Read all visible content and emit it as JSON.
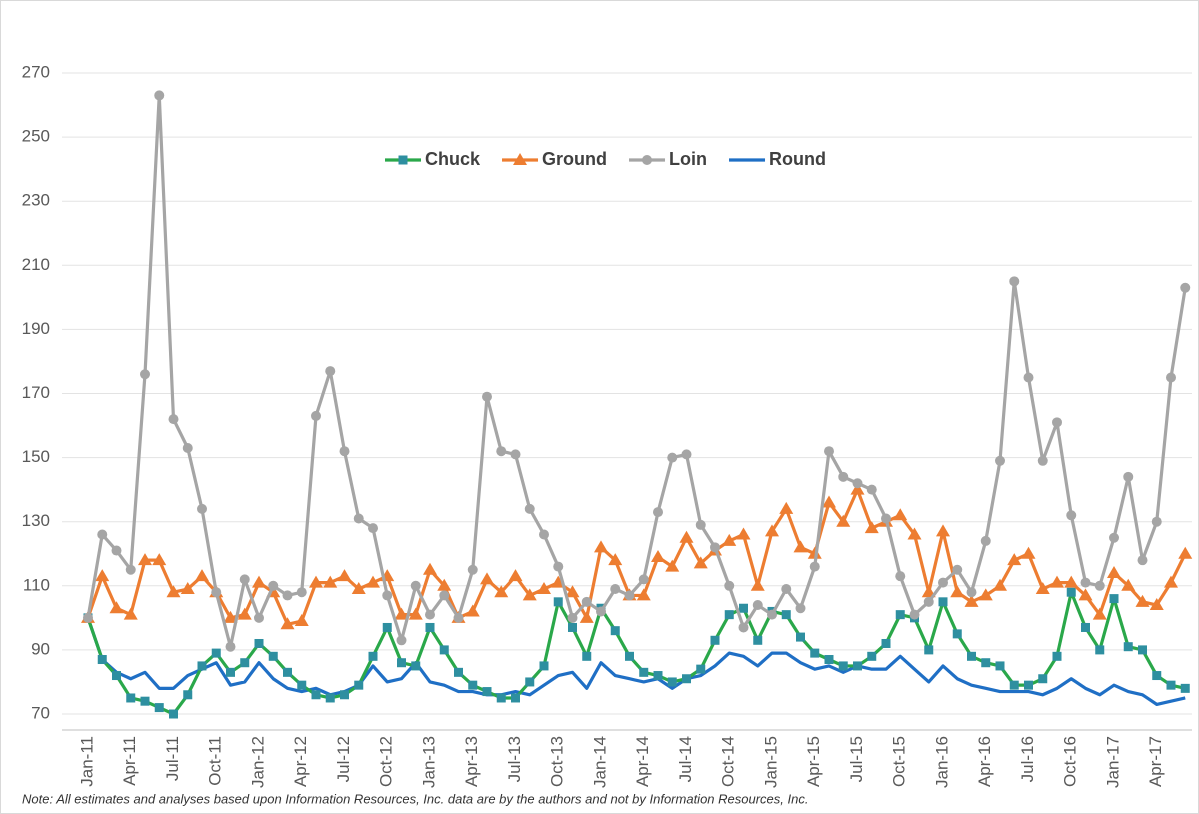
{
  "chart_data": {
    "type": "line",
    "note": "Note: All estimates and analyses based upon Information Resources, Inc. data are by the authors and not by Information Resources, Inc.",
    "categories": [
      "Jan-11",
      null,
      null,
      "Apr-11",
      null,
      null,
      "Jul-11",
      null,
      null,
      "Oct-11",
      null,
      null,
      "Jan-12",
      null,
      null,
      "Apr-12",
      null,
      null,
      "Jul-12",
      null,
      null,
      "Oct-12",
      null,
      null,
      "Jan-13",
      null,
      null,
      "Apr-13",
      null,
      null,
      "Jul-13",
      null,
      null,
      "Oct-13",
      null,
      null,
      "Jan-14",
      null,
      null,
      "Apr-14",
      null,
      null,
      "Jul-14",
      null,
      null,
      "Oct-14",
      null,
      null,
      "Jan-15",
      null,
      null,
      "Apr-15",
      null,
      null,
      "Jul-15",
      null,
      null,
      "Oct-15",
      null,
      null,
      "Jan-16",
      null,
      null,
      "Apr-16",
      null,
      null,
      "Jul-16",
      null,
      null,
      "Oct-16",
      null,
      null,
      "Jan-17",
      null,
      null,
      "Apr-17",
      null,
      null
    ],
    "series": [
      {
        "name": "Chuck",
        "color": "#2aa84a",
        "marker": "square",
        "marker_color": "#2e8fa0",
        "values": [
          100,
          87,
          82,
          75,
          74,
          72,
          70,
          76,
          85,
          89,
          83,
          86,
          92,
          88,
          83,
          79,
          76,
          75,
          76,
          79,
          88,
          97,
          86,
          85,
          97,
          90,
          83,
          79,
          77,
          75,
          75,
          80,
          85,
          105,
          97,
          88,
          103,
          96,
          88,
          83,
          82,
          80,
          81,
          84,
          93,
          101,
          103,
          93,
          102,
          101,
          94,
          89,
          87,
          85,
          85,
          88,
          92,
          101,
          100,
          90,
          105,
          95,
          88,
          86,
          85,
          79,
          79,
          81,
          88,
          108,
          97,
          90,
          106,
          91,
          90,
          82,
          79,
          78
        ]
      },
      {
        "name": "Ground",
        "color": "#ed7d31",
        "marker": "triangle",
        "marker_color": "#ed7d31",
        "values": [
          100,
          113,
          103,
          101,
          118,
          118,
          108,
          109,
          113,
          108,
          100,
          101,
          111,
          108,
          98,
          99,
          111,
          111,
          113,
          109,
          111,
          113,
          101,
          101,
          115,
          110,
          100,
          102,
          112,
          108,
          113,
          107,
          109,
          111,
          108,
          100,
          122,
          118,
          107,
          107,
          119,
          116,
          125,
          117,
          121,
          124,
          126,
          110,
          127,
          134,
          122,
          120,
          136,
          130,
          140,
          128,
          130,
          132,
          126,
          108,
          127,
          108,
          105,
          107,
          110,
          118,
          120,
          109,
          111,
          111,
          107,
          101,
          114,
          110,
          105,
          104,
          111,
          120
        ]
      },
      {
        "name": "Loin",
        "color": "#a5a5a5",
        "marker": "circle",
        "marker_color": "#a5a5a5",
        "values": [
          100,
          126,
          121,
          115,
          176,
          263,
          162,
          153,
          134,
          108,
          91,
          112,
          100,
          110,
          107,
          108,
          163,
          177,
          152,
          131,
          128,
          107,
          93,
          110,
          101,
          107,
          100,
          115,
          169,
          152,
          151,
          134,
          126,
          116,
          100,
          105,
          102,
          109,
          107,
          112,
          133,
          150,
          151,
          129,
          122,
          110,
          97,
          104,
          101,
          109,
          103,
          116,
          152,
          144,
          142,
          140,
          131,
          113,
          101,
          105,
          111,
          115,
          108,
          124,
          149,
          205,
          175,
          149,
          161,
          132,
          111,
          110,
          125,
          144,
          118,
          130,
          175,
          203
        ]
      },
      {
        "name": "Round",
        "color": "#1f6fc5",
        "marker": "none",
        "marker_color": "#1f6fc5",
        "values": [
          100,
          87,
          83,
          81,
          83,
          78,
          78,
          82,
          84,
          86,
          79,
          80,
          86,
          81,
          78,
          77,
          78,
          76,
          77,
          79,
          85,
          80,
          81,
          86,
          80,
          79,
          77,
          77,
          76,
          76,
          77,
          76,
          79,
          82,
          83,
          78,
          86,
          82,
          81,
          80,
          81,
          78,
          81,
          82,
          85,
          89,
          88,
          85,
          89,
          89,
          86,
          84,
          85,
          83,
          85,
          84,
          84,
          88,
          84,
          80,
          85,
          81,
          79,
          78,
          77,
          77,
          77,
          76,
          78,
          81,
          78,
          76,
          79,
          77,
          76,
          73,
          74,
          75
        ]
      }
    ],
    "ylim": [
      65,
      280
    ],
    "yticks": [
      70,
      90,
      110,
      130,
      150,
      170,
      190,
      210,
      230,
      250,
      270
    ],
    "grid": true,
    "legend": "top"
  }
}
